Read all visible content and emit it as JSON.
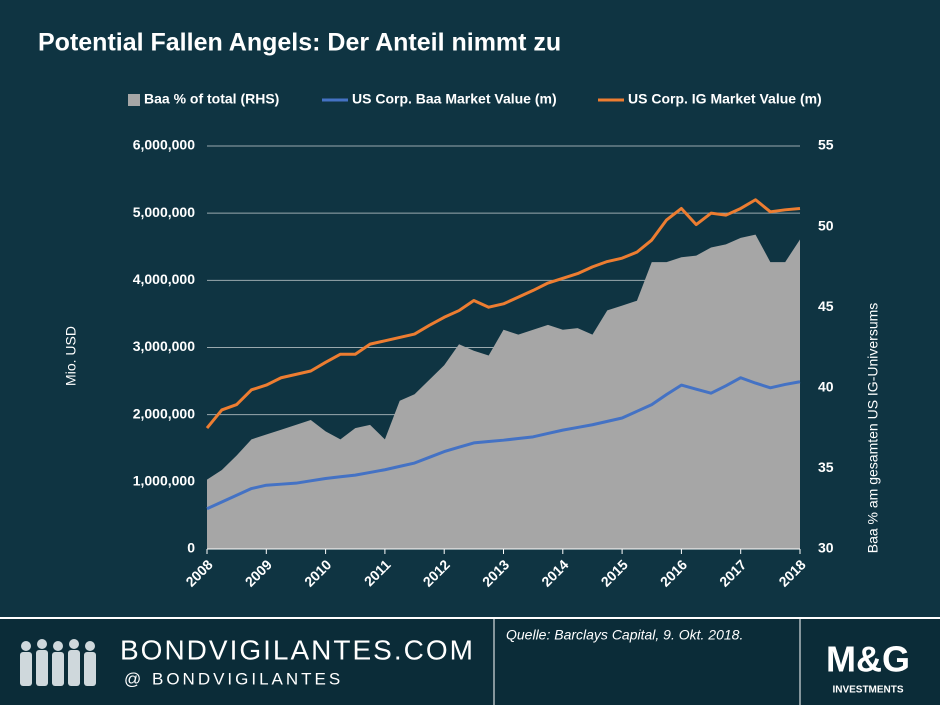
{
  "chart_data": {
    "type": "combo",
    "title": "Potential Fallen Angels: Der Anteil nimmt zu",
    "ylabel": "Mio. USD",
    "y2label": "Baa % am gesamten US IG-Universums",
    "legend": "top",
    "grid": true,
    "x": [
      2008,
      2008.25,
      2008.5,
      2008.75,
      2009,
      2009.25,
      2009.5,
      2009.75,
      2010,
      2010.25,
      2010.5,
      2010.75,
      2011,
      2011.25,
      2011.5,
      2011.75,
      2012,
      2012.25,
      2012.5,
      2012.75,
      2013,
      2013.25,
      2013.5,
      2013.75,
      2014,
      2014.25,
      2014.5,
      2014.75,
      2015,
      2015.25,
      2015.5,
      2015.75,
      2016,
      2016.25,
      2016.5,
      2016.75,
      2017,
      2017.25,
      2017.5,
      2017.75,
      2018
    ],
    "xlim": [
      2008,
      2018
    ],
    "xticks": [
      2008,
      2009,
      2010,
      2011,
      2012,
      2013,
      2014,
      2015,
      2016,
      2017,
      2018
    ],
    "ylim": [
      0,
      6000000
    ],
    "yticks": [
      0,
      {
        "value": 1000000,
        "label": "1,000,000"
      },
      {
        "value": 2000000,
        "label": "2,000,000"
      },
      {
        "value": 3000000,
        "label": "3,000,000"
      },
      {
        "value": 4000000,
        "label": "4,000,000"
      },
      {
        "value": 5000000,
        "label": "5,000,000"
      },
      {
        "value": 6000000,
        "label": "6,000,000"
      }
    ],
    "y2lim": [
      30,
      55
    ],
    "y2ticks": [
      30,
      35,
      40,
      45,
      50,
      55
    ],
    "series": [
      {
        "name": "Baa % of total (RHS)",
        "kind": "area",
        "axis": "y2",
        "color": "#a6a6a6",
        "values": [
          34.3,
          34.9,
          35.8,
          36.8,
          37.1,
          37.4,
          37.7,
          38.0,
          37.3,
          36.8,
          37.5,
          37.7,
          36.8,
          39.2,
          39.6,
          40.5,
          41.4,
          42.7,
          42.3,
          42.0,
          43.6,
          43.3,
          43.6,
          43.9,
          43.6,
          43.7,
          43.3,
          44.8,
          45.1,
          45.4,
          47.8,
          47.8,
          48.1,
          48.2,
          48.7,
          48.9,
          49.3,
          49.5,
          47.8,
          47.8,
          49.2
        ]
      },
      {
        "name": "US Corp. Baa Market Value (m)",
        "kind": "line",
        "color": "#4472c4",
        "values": [
          600000,
          700000,
          800000,
          900000,
          950000,
          965000,
          980000,
          1015000,
          1050000,
          1075000,
          1100000,
          1140000,
          1180000,
          1230000,
          1280000,
          1365000,
          1450000,
          1515000,
          1580000,
          1600000,
          1620000,
          1645000,
          1670000,
          1720000,
          1770000,
          1810000,
          1850000,
          1900000,
          1950000,
          2050000,
          2150000,
          2300000,
          2440000,
          2380000,
          2320000,
          2430000,
          2550000,
          2470000,
          2400000,
          2450000,
          2490000
        ]
      },
      {
        "name": "US Corp. IG Market Value (m)",
        "kind": "line",
        "color": "#ed7d31",
        "values": [
          1800000,
          2070000,
          2150000,
          2370000,
          2440000,
          2550000,
          2600000,
          2650000,
          2780000,
          2900000,
          2900000,
          3050000,
          3100000,
          3150000,
          3200000,
          3330000,
          3450000,
          3550000,
          3700000,
          3600000,
          3650000,
          3750000,
          3850000,
          3960000,
          4030000,
          4100000,
          4200000,
          4280000,
          4330000,
          4420000,
          4600000,
          4900000,
          5070000,
          4830000,
          5000000,
          4970000,
          5070000,
          5200000,
          5020000,
          5050000,
          5070000
        ]
      }
    ]
  },
  "footer": {
    "site": "BONDVIGILANTES.COM",
    "handle": "@ BONDVIGILANTES",
    "source": "Quelle: Barclays Capital, 9. Okt. 2018.",
    "logo": "M&G",
    "logo_sub": "INVESTMENTS"
  }
}
